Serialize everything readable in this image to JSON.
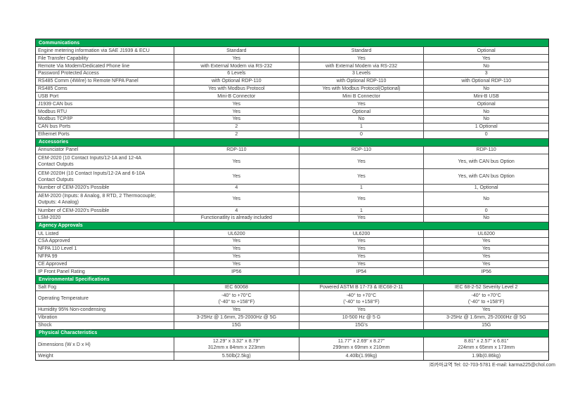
{
  "footer": {
    "text": "㈜카마교역 Tel: 02-703-5781 E-mail: karma225@chol.com"
  },
  "colors": {
    "section_header_bg": "#00A651",
    "section_header_text": "#ffffff",
    "grid_line": "#4a4a4a"
  },
  "table": {
    "sections": [
      {
        "title": "Communications",
        "rows": [
          {
            "label": "Engine metering information via SAE J1939 & ECU",
            "values": [
              "Standard",
              "Standard",
              "Optional"
            ]
          },
          {
            "label": "File Transfer Capability",
            "values": [
              "Yes",
              "Yes",
              "Yes"
            ]
          },
          {
            "label": "Remote Via Modem/Dedicated Phone line",
            "values": [
              "with External Modem via RS-232",
              "with External Modem via RS-232",
              "No"
            ]
          },
          {
            "label": "Password Protected Access",
            "values": [
              "6 Levels",
              "3 Levels",
              "3"
            ]
          },
          {
            "label": "RS485 Comm (4Wire) to Remote NFPA Panel",
            "values": [
              "with Optional RDP-110",
              "with Optional RDP-110",
              "with Optional RDP-110"
            ]
          },
          {
            "label": "RS485 Coms",
            "values": [
              "Yes with Modbus Protocol",
              "Yes with Modbus Protocol(Optional)",
              "No"
            ]
          },
          {
            "label": "USB Port",
            "values": [
              "Mini-B Connector",
              "Mini B Connector",
              "Mini-B USB"
            ]
          },
          {
            "label": "J1939 CAN bus",
            "values": [
              "Yes",
              "Yes",
              "Optional"
            ]
          },
          {
            "label": "Modbus RTU",
            "values": [
              "Yes",
              "Optional",
              "No"
            ]
          },
          {
            "label": "Modbus TCP/IP",
            "values": [
              "Yes",
              "No",
              "No"
            ]
          },
          {
            "label": "CAN bus Ports",
            "values": [
              "2",
              "1",
              "1 Optional"
            ]
          },
          {
            "label": "Ethernet Ports",
            "values": [
              "2",
              "0",
              "0"
            ]
          }
        ]
      },
      {
        "title": "Accessories",
        "rows": [
          {
            "label": "Annunciator Panel",
            "values": [
              "RDP-110",
              "RDP-110",
              "RDP-110"
            ]
          },
          {
            "label": "CEM-2020 (10 Contact Inputs/12-1A and 12-4A\nContact Outputs",
            "values": [
              "Yes",
              "Yes",
              "Yes, with CAN bus Option"
            ]
          },
          {
            "label": "CEM-2020H (10 Contact Inputs/12-2A and 6-10A\nContact Outputs",
            "values": [
              "Yes",
              "Yes",
              "Yes, with CAN bus Option"
            ]
          },
          {
            "label": "Number of CEM-2020's Possible",
            "values": [
              "4",
              "1",
              "1, Optional"
            ]
          },
          {
            "label": "AEM-2020 (Inputs: 8 Analog, 8 RTD, 2 Thermocouple;\nOutputs: 4 Analog)",
            "values": [
              "Yes",
              "Yes",
              "No"
            ]
          },
          {
            "label": "Number of CEM-2020's Possible",
            "values": [
              "4",
              "1",
              "0"
            ]
          },
          {
            "label": "LSM-2020",
            "values": [
              "Functionatlity is already included",
              "Yes",
              "No"
            ]
          }
        ]
      },
      {
        "title": "Agency Approvals",
        "rows": [
          {
            "label": "UL Listed",
            "values": [
              "UL6200",
              "UL6200",
              "UL6200"
            ]
          },
          {
            "label": "CSA Approved",
            "values": [
              "Yes",
              "Yes",
              "Yes"
            ]
          },
          {
            "label": "NFPA 110 Level 1",
            "values": [
              "Yes",
              "Yes",
              "Yes"
            ]
          },
          {
            "label": "NFPA 99",
            "values": [
              "Yes",
              "Yes",
              "Yes"
            ]
          },
          {
            "label": "CE Approved",
            "values": [
              "Yes",
              "Yes",
              "Yes"
            ]
          },
          {
            "label": "IP Front Panel Rating",
            "values": [
              "IP56",
              "IP54",
              "IP56"
            ]
          }
        ]
      },
      {
        "title": "Environmental Specifications",
        "rows": [
          {
            "label": "Salt Fog",
            "values": [
              "IEC 60068",
              "Powered ASTM B 17-73 & IEC68-2-11",
              "IEC 68-2-52 Severity Level 2"
            ]
          },
          {
            "label": "Operating Temperature",
            "values": [
              "-40° to +70°C\n('-40° to +158°F)",
              "-40° to +70°C\n('-40° to +158°F)",
              "-40° to +70°C\n('-40° to +158°F)"
            ]
          },
          {
            "label": "Humidity 95% Non-condensing",
            "values": [
              "Yes",
              "Yes",
              "Yes"
            ]
          },
          {
            "label": "Vibration",
            "values": [
              "3-25Hz @ 1.6mm, 25-2000Hz @ 5G",
              "10-500 Hz @ 5 G",
              "3-25Hz @ 1.6mm, 25-2000Hz @ 5G"
            ]
          },
          {
            "label": "Shock",
            "values": [
              "15G",
              "15G's",
              "15G"
            ]
          }
        ]
      },
      {
        "title": "Physical Characteristics",
        "rows": [
          {
            "label": "Dimensions (W x D x H)",
            "values": [
              "12.29\" x 3.32\" x 8.79\"\n312mm x 84mm x 223mm",
              "11.77\" x 2.69\" x 8.27\"\n299mm x 69mm x 210mm",
              "8.81\" x 2.57\" x 6.81\"\n224mm x 65mm x 173mm"
            ]
          },
          {
            "label": "Weight",
            "values": [
              "5.50lb(2.5kg)",
              "4.40lb(1.99kg)",
              "1.9lb(0.86kg)"
            ]
          }
        ]
      }
    ]
  }
}
